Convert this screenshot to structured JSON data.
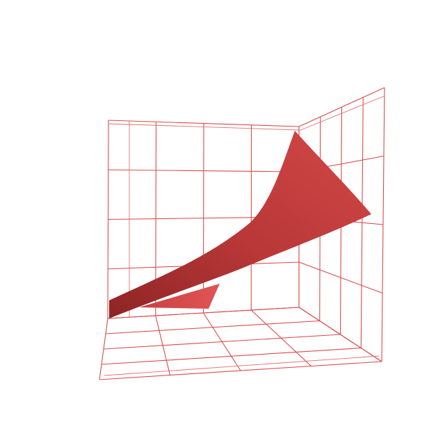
{
  "chart_data": {
    "type": "surface3d",
    "title": "",
    "xlabel": "",
    "ylabel": "",
    "zlabel": "",
    "grid": true,
    "axis_ticks_visible": false,
    "colors": {
      "grid": "#d94a4a",
      "surface_light": "#d34848",
      "surface_mid": "#b83737",
      "surface_dark": "#8e2424",
      "background": "#ffffff"
    },
    "surface": {
      "shape": "monotone curved sheet rising toward the far-right corner",
      "z_trend": "increasing"
    }
  }
}
